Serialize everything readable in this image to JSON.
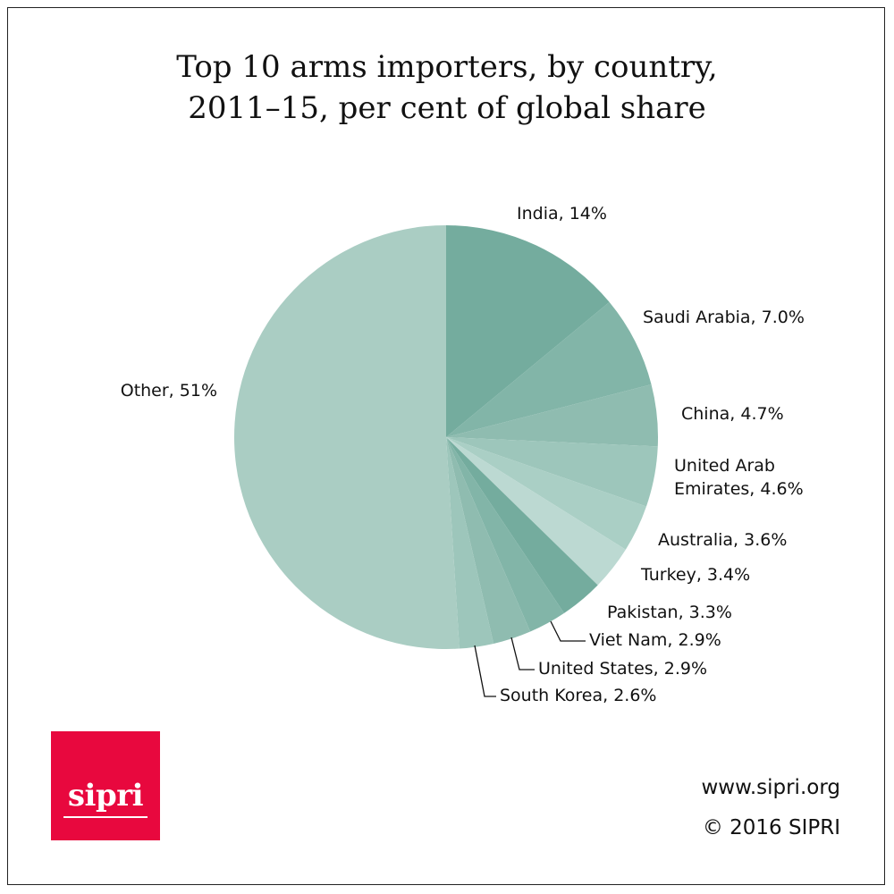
{
  "title": {
    "line1": "Top 10 arms importers, by country,",
    "line2": "2011–15, per cent of global share"
  },
  "chart_data": {
    "type": "pie",
    "title": "Top 10 arms importers, by country, 2011–15, per cent of global share",
    "slices": [
      {
        "label": "India, 14%",
        "name": "India",
        "value": 14.0,
        "color": "#74ac9e"
      },
      {
        "label": "Saudi Arabia, 7.0%",
        "name": "Saudi Arabia",
        "value": 7.0,
        "color": "#82b5a8"
      },
      {
        "label": "China, 4.7%",
        "name": "China",
        "value": 4.7,
        "color": "#8fbcb0"
      },
      {
        "label": "United Arab Emirates, 4.6%",
        "name": "United Arab Emirates",
        "value": 4.6,
        "color": "#9dc6bb"
      },
      {
        "label": "Australia, 3.6%",
        "name": "Australia",
        "value": 3.6,
        "color": "#aacfc5"
      },
      {
        "label": "Turkey, 3.4%",
        "name": "Turkey",
        "value": 3.4,
        "color": "#bcd9d2"
      },
      {
        "label": "Pakistan, 3.3%",
        "name": "Pakistan",
        "value": 3.3,
        "color": "#74ac9e"
      },
      {
        "label": "Viet Nam, 2.9%",
        "name": "Viet Nam",
        "value": 2.9,
        "color": "#82b5a8"
      },
      {
        "label": "United States, 2.9%",
        "name": "United States",
        "value": 2.9,
        "color": "#8fbcb0"
      },
      {
        "label": "South Korea, 2.6%",
        "name": "South Korea",
        "value": 2.6,
        "color": "#9dc6bb"
      },
      {
        "label": "Other, 51%",
        "name": "Other",
        "value": 51.0,
        "color": "#aacdc3"
      }
    ]
  },
  "branding": {
    "logo_text": "sipri",
    "logo_color": "#e8083e",
    "url": "www.sipri.org",
    "copyright": "© 2016 SIPRI"
  }
}
